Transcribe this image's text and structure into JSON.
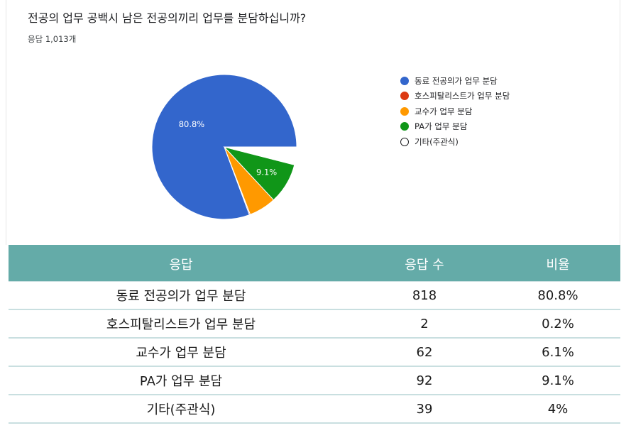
{
  "question": "전공의 업무 공백시 남은 전공의끼리 업무를 분담하십니까?",
  "response_count": "응답 1,013개",
  "chart_data": {
    "type": "pie",
    "slices": [
      {
        "label": "동료 전공의가 업무 분담",
        "value": 80.8,
        "color": "#3366cc",
        "data_label": "80.8%"
      },
      {
        "label": "호스피탈리스트가 업무 분담",
        "value": 0.2,
        "color": "#dc3912",
        "data_label": ""
      },
      {
        "label": "교수가 업무 분담",
        "value": 6.1,
        "color": "#ff9900",
        "data_label": ""
      },
      {
        "label": "PA가 업무 분담",
        "value": 9.1,
        "color": "#109618",
        "data_label": "9.1%"
      },
      {
        "label": "기타(주관식)",
        "value": 4,
        "color": "#ffffff",
        "data_label": ""
      }
    ],
    "legend_position": "right"
  },
  "table": {
    "headers": [
      "응답",
      "응답 수",
      "비율"
    ],
    "rows": [
      [
        "동료 전공의가 업무 분담",
        "818",
        "80.8%"
      ],
      [
        "호스피탈리스트가 업무 분담",
        "2",
        "0.2%"
      ],
      [
        "교수가 업무 분담",
        "62",
        "6.1%"
      ],
      [
        "PA가 업무 분담",
        "92",
        "9.1%"
      ],
      [
        "기타(주관식)",
        "39",
        "4%"
      ]
    ]
  }
}
